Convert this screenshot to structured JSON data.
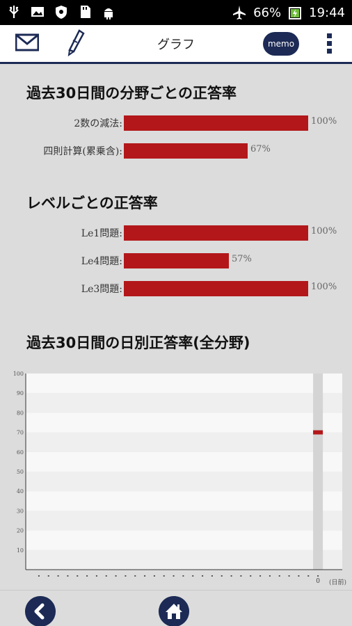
{
  "status_bar": {
    "battery": "66%",
    "time": "19:44",
    "icons": [
      "usb-icon",
      "image-icon",
      "shield-icon",
      "sd-card-icon",
      "android-icon",
      "airplane-icon",
      "battery-icon"
    ]
  },
  "header": {
    "title": "グラフ",
    "memo_label": "memo"
  },
  "sections": {
    "field_title": "過去30日間の分野ごとの正答率",
    "level_title": "レベルごとの正答率",
    "daily_title": "過去30日間の日別正答率(全分野)"
  },
  "field_rates": [
    {
      "label": "2数の減法:",
      "value": 100,
      "pct": "100%"
    },
    {
      "label": "四則計算(累乗含):",
      "value": 67,
      "pct": "67%"
    }
  ],
  "level_rates": [
    {
      "label": "Le1問題:",
      "value": 100,
      "pct": "100%"
    },
    {
      "label": "Le4問題:",
      "value": 57,
      "pct": "57%"
    },
    {
      "label": "Le3問題:",
      "value": 100,
      "pct": "100%"
    }
  ],
  "chart_data": {
    "type": "bar",
    "title": "過去30日間の日別正答率(全分野)",
    "y_ticks": [
      "10",
      "20",
      "30",
      "40",
      "50",
      "60",
      "70",
      "80",
      "90",
      "100"
    ],
    "ylim": [
      0,
      100
    ],
    "x_tick_label": "0",
    "x_unit_label": "(日前)",
    "days": 30,
    "values": [
      {
        "day": 0,
        "value": 70
      }
    ],
    "colors": {
      "bar": "#b3171a",
      "column": "#d4d4d4"
    }
  }
}
